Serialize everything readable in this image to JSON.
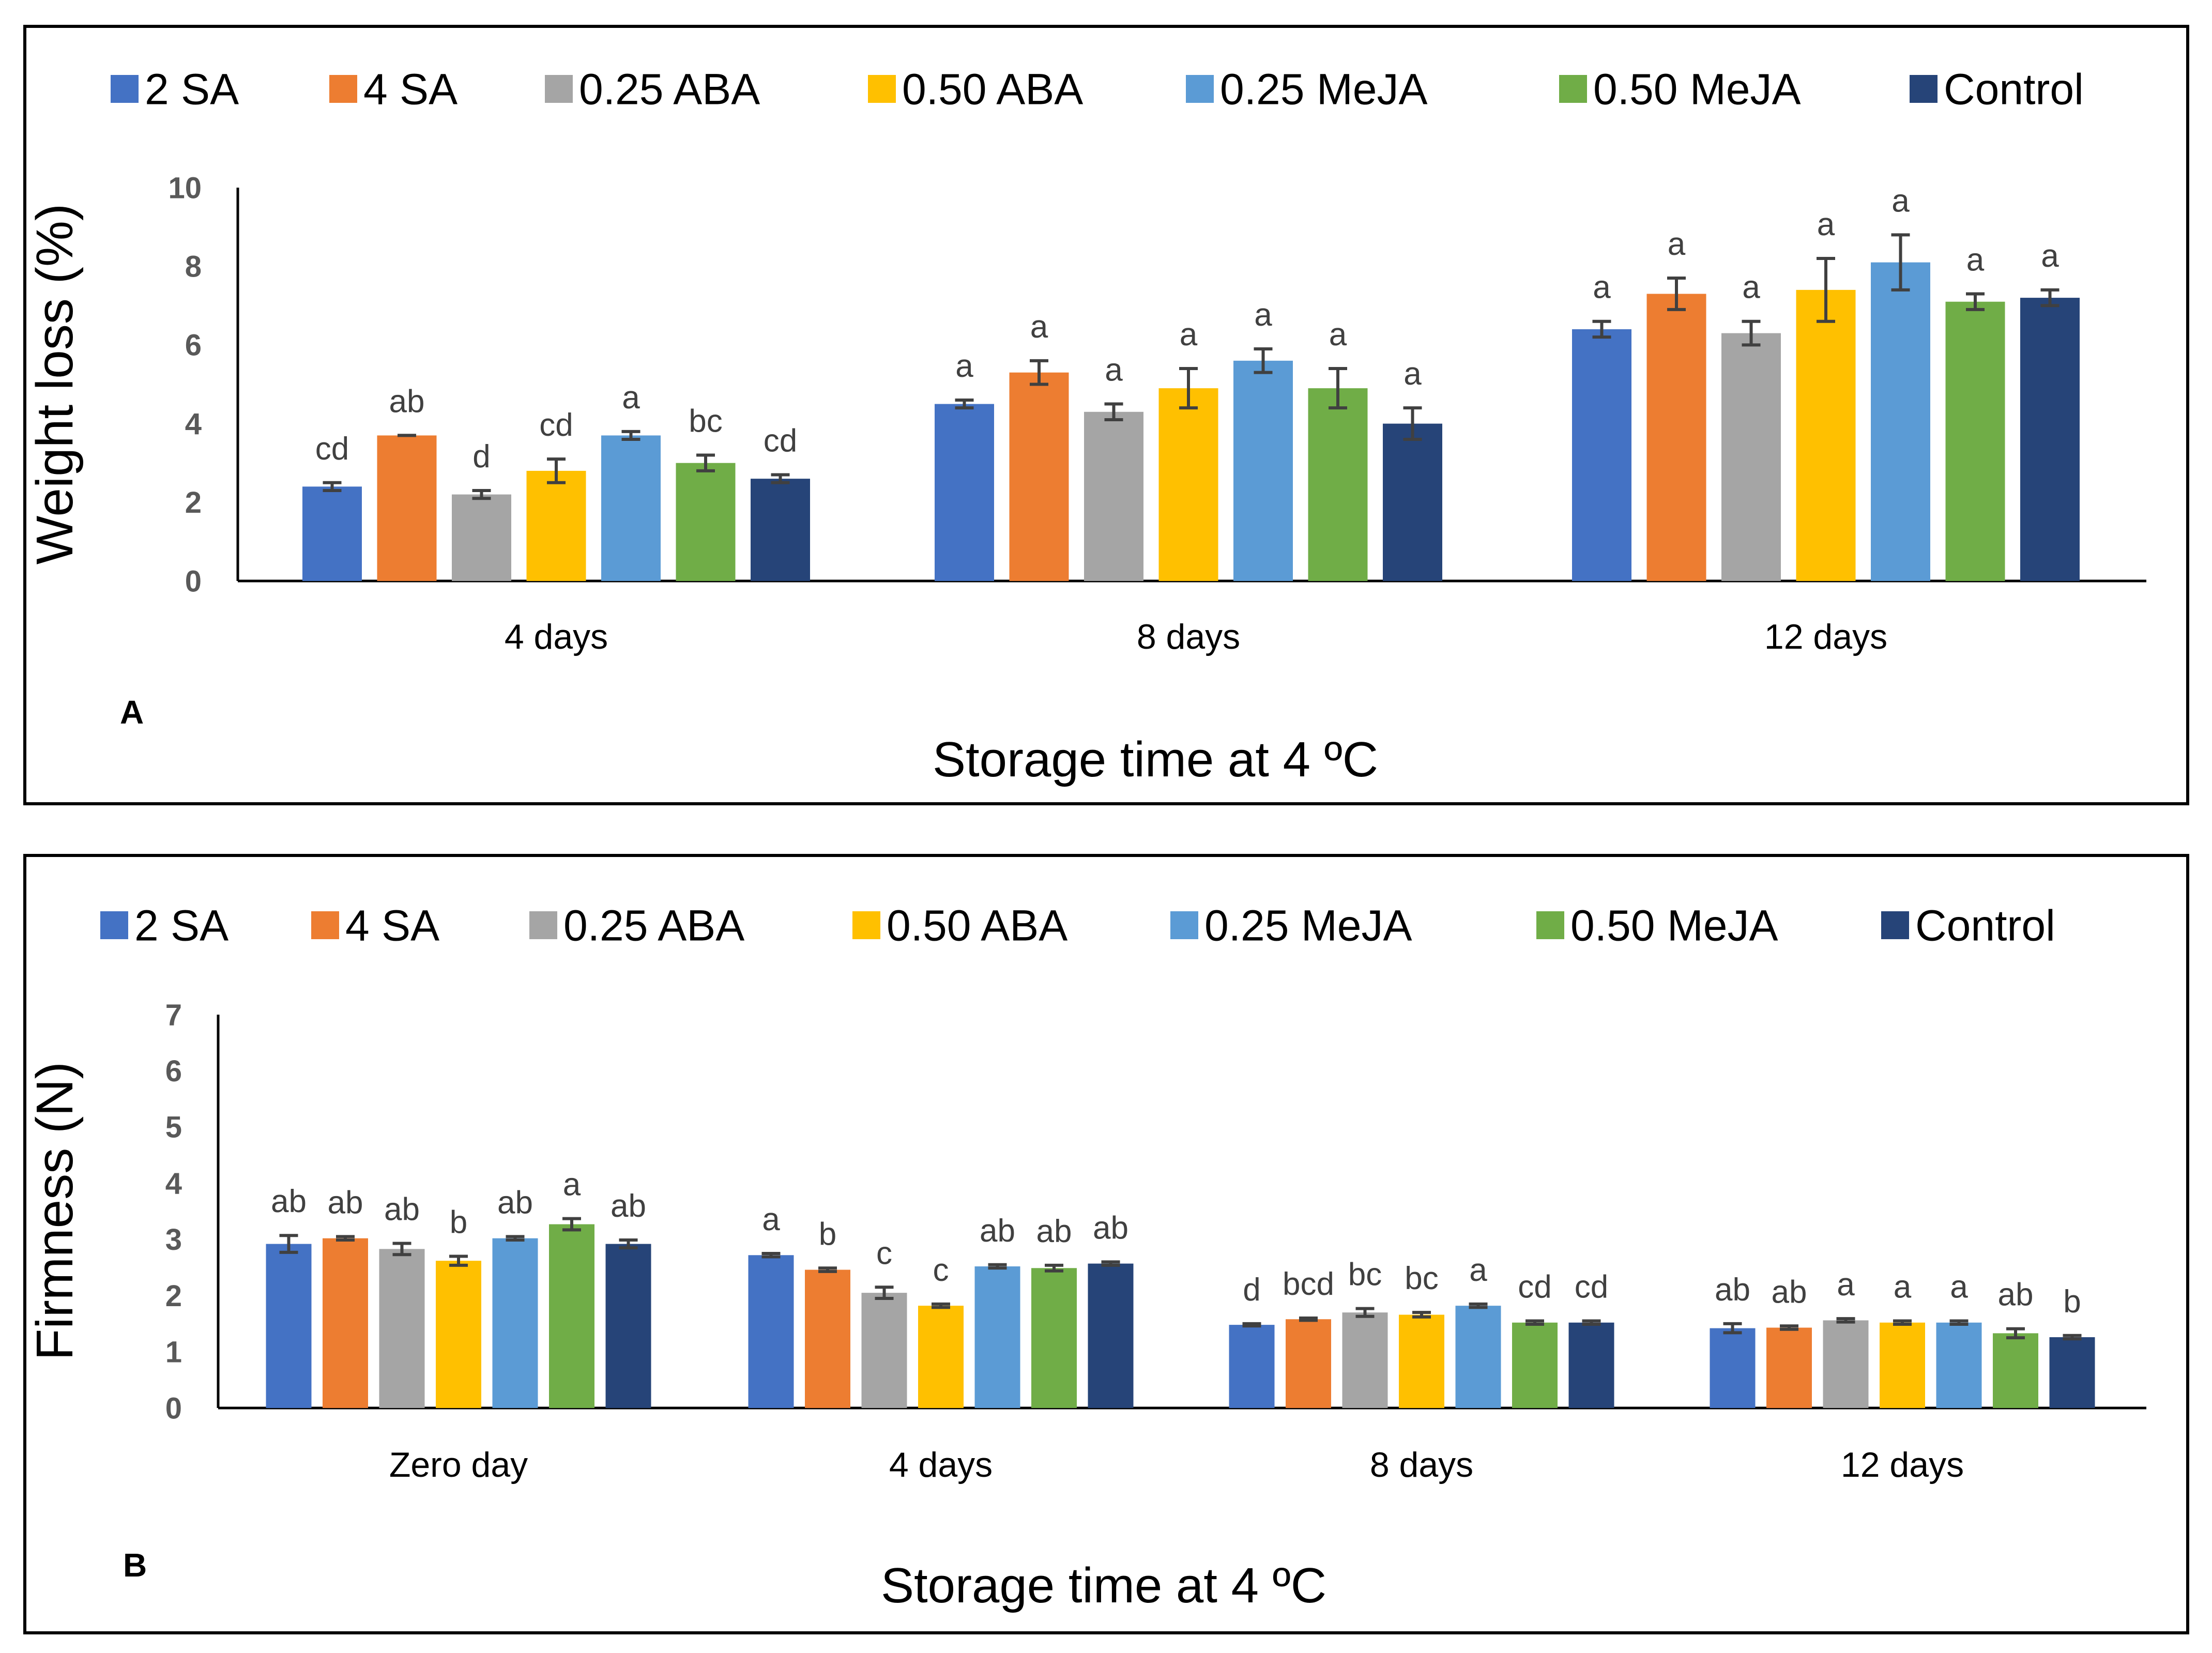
{
  "chart_data": [
    {
      "type": "bar",
      "panel_label": "A",
      "xlabel": "Storage time at 4 ºC",
      "ylabel": "Weight loss (%)",
      "ylim": [
        0,
        10
      ],
      "yticks": [
        "0",
        "2",
        "4",
        "6",
        "8",
        "10"
      ],
      "grid": false,
      "legend_position": "top",
      "categories": [
        "4 days",
        "8 days",
        "12 days"
      ],
      "series": [
        {
          "name": "2 SA",
          "color": "#4472C4",
          "values": [
            2.4,
            4.5,
            6.4
          ],
          "errors": [
            0.1,
            0.1,
            0.2
          ],
          "letters": [
            "cd",
            "a",
            "a"
          ]
        },
        {
          "name": "4 SA",
          "color": "#ED7D31",
          "values": [
            3.7,
            5.3,
            7.3
          ],
          "errors": [
            0.0,
            0.3,
            0.4
          ],
          "letters": [
            "ab",
            "a",
            "a"
          ]
        },
        {
          "name": "0.25 ABA",
          "color": "#A5A5A5",
          "values": [
            2.2,
            4.3,
            6.3
          ],
          "errors": [
            0.1,
            0.2,
            0.3
          ],
          "letters": [
            "d",
            "a",
            "a"
          ]
        },
        {
          "name": "0.50 ABA",
          "color": "#FFC000",
          "values": [
            2.8,
            4.9,
            7.4
          ],
          "errors": [
            0.3,
            0.5,
            0.8
          ],
          "letters": [
            "cd",
            "a",
            "a"
          ]
        },
        {
          "name": "0.25 MeJA",
          "color": "#5B9BD5",
          "values": [
            3.7,
            5.6,
            8.1
          ],
          "errors": [
            0.1,
            0.3,
            0.7
          ],
          "letters": [
            "a",
            "a",
            "a"
          ]
        },
        {
          "name": "0.50 MeJA",
          "color": "#70AD47",
          "values": [
            3.0,
            4.9,
            7.1
          ],
          "errors": [
            0.2,
            0.5,
            0.2
          ],
          "letters": [
            "bc",
            "a",
            "a"
          ]
        },
        {
          "name": "Control",
          "color": "#264478",
          "values": [
            2.6,
            4.0,
            7.2
          ],
          "errors": [
            0.1,
            0.4,
            0.2
          ],
          "letters": [
            "cd",
            "a",
            "a"
          ]
        }
      ]
    },
    {
      "type": "bar",
      "panel_label": "B",
      "xlabel": "Storage time at 4 ºC",
      "ylabel": "Firmness (N)",
      "ylim": [
        0,
        7
      ],
      "yticks": [
        "0",
        "1",
        "2",
        "3",
        "4",
        "5",
        "6",
        "7"
      ],
      "grid": false,
      "legend_position": "top",
      "categories": [
        "Zero day",
        "4 days",
        "8 days",
        "12 days"
      ],
      "series": [
        {
          "name": "2 SA",
          "color": "#4472C4",
          "values": [
            2.92,
            2.72,
            1.48,
            1.42
          ],
          "errors": [
            0.15,
            0.03,
            0.02,
            0.08
          ],
          "letters": [
            "ab",
            "a",
            "d",
            "ab"
          ]
        },
        {
          "name": "4 SA",
          "color": "#ED7D31",
          "values": [
            3.02,
            2.46,
            1.58,
            1.43
          ],
          "errors": [
            0.03,
            0.03,
            0.02,
            0.03
          ],
          "letters": [
            "ab",
            "b",
            "bcd",
            "ab"
          ]
        },
        {
          "name": "0.25 ABA",
          "color": "#A5A5A5",
          "values": [
            2.83,
            2.05,
            1.7,
            1.56
          ],
          "errors": [
            0.1,
            0.1,
            0.07,
            0.03
          ],
          "letters": [
            "ab",
            "c",
            "bc",
            "a"
          ]
        },
        {
          "name": "0.50 ABA",
          "color": "#FFC000",
          "values": [
            2.62,
            1.82,
            1.66,
            1.52
          ],
          "errors": [
            0.08,
            0.03,
            0.04,
            0.03
          ],
          "letters": [
            "b",
            "c",
            "bc",
            "a"
          ]
        },
        {
          "name": "0.25 MeJA",
          "color": "#5B9BD5",
          "values": [
            3.02,
            2.52,
            1.82,
            1.52
          ],
          "errors": [
            0.03,
            0.03,
            0.03,
            0.03
          ],
          "letters": [
            "ab",
            "ab",
            "a",
            "a"
          ]
        },
        {
          "name": "0.50 MeJA",
          "color": "#70AD47",
          "values": [
            3.27,
            2.49,
            1.52,
            1.33
          ],
          "errors": [
            0.1,
            0.05,
            0.03,
            0.08
          ],
          "letters": [
            "a",
            "ab",
            "cd",
            "ab"
          ]
        },
        {
          "name": "Control",
          "color": "#264478",
          "values": [
            2.92,
            2.57,
            1.52,
            1.26
          ],
          "errors": [
            0.07,
            0.03,
            0.03,
            0.03
          ],
          "letters": [
            "ab",
            "ab",
            "cd",
            "b"
          ]
        }
      ]
    }
  ]
}
